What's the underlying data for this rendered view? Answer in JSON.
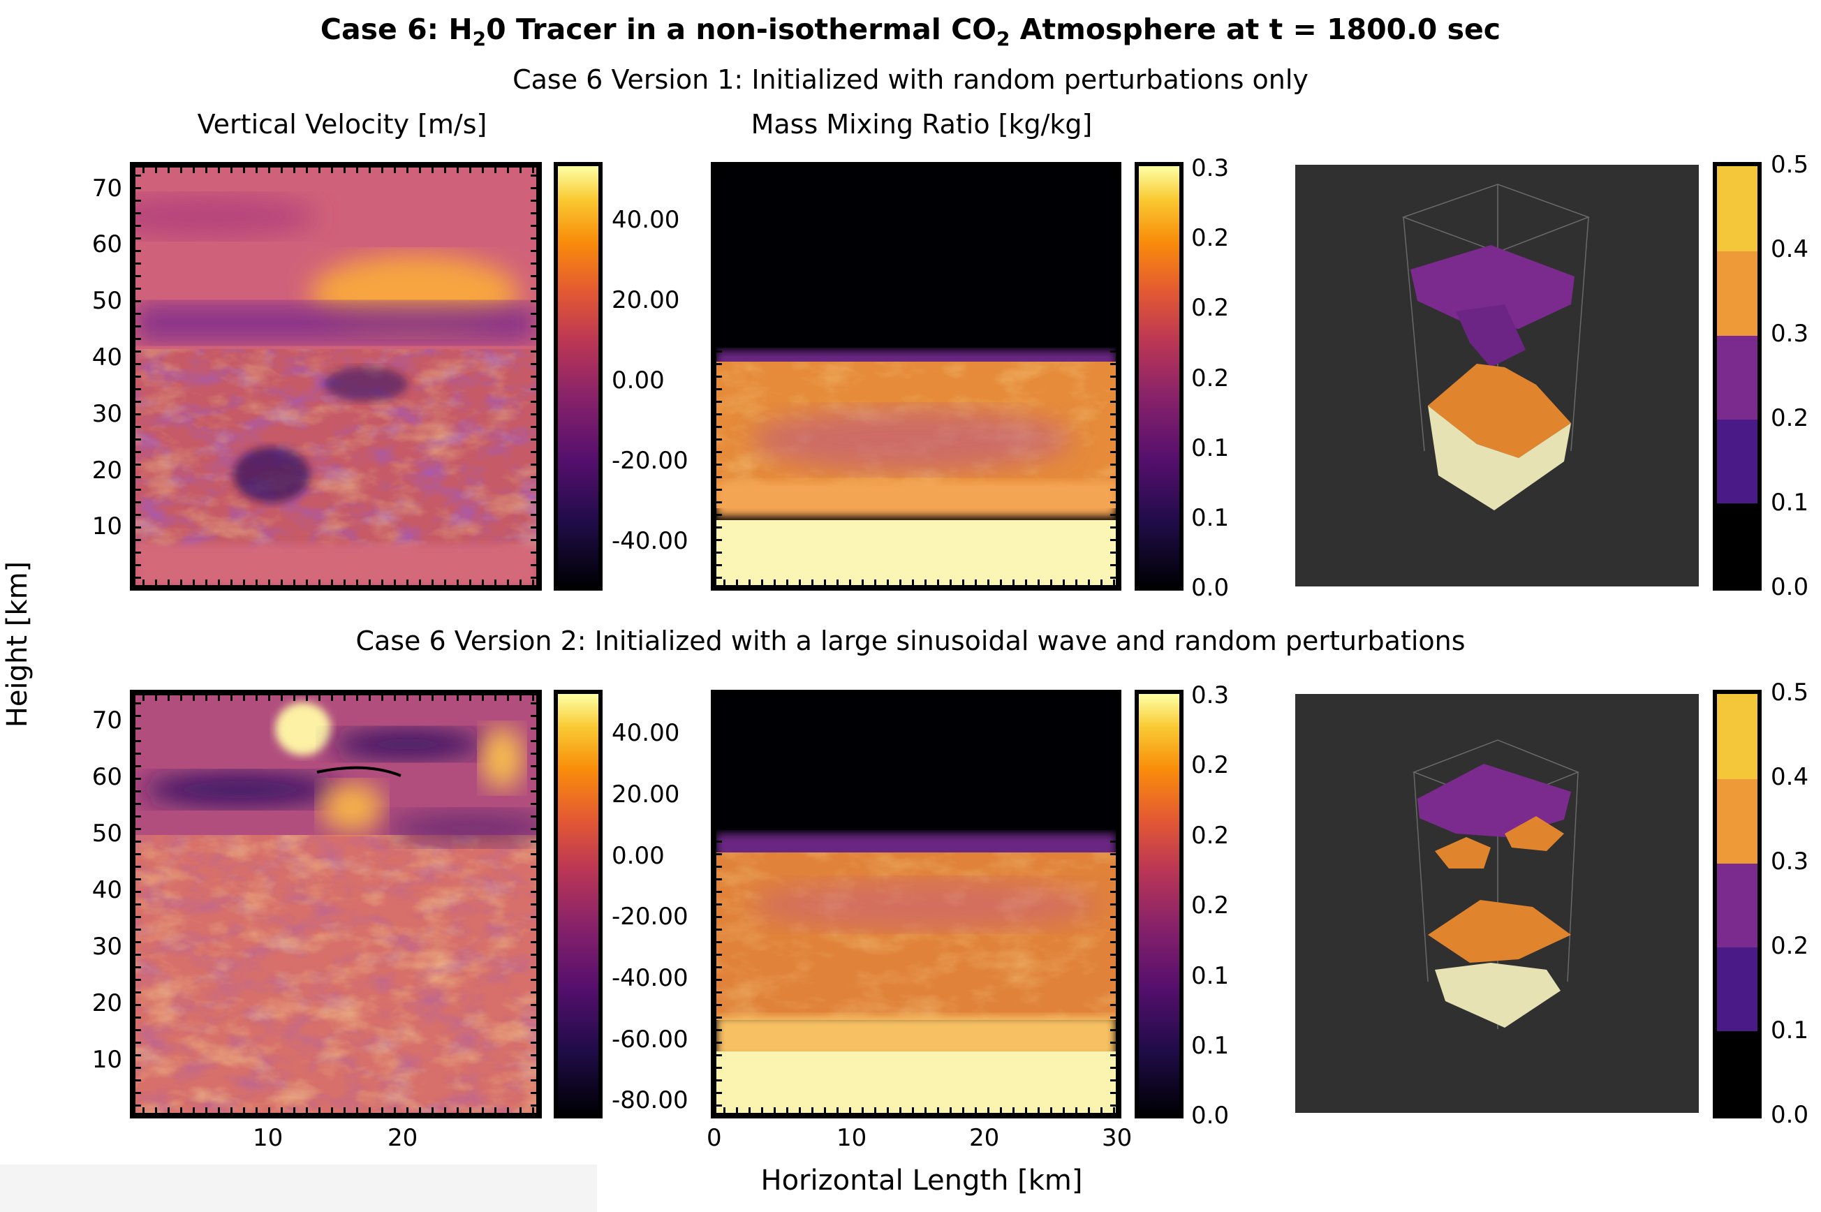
{
  "title": {
    "pre": "Case 6: H",
    "sub1": "2",
    "mid": "0 Tracer in a non-isothermal CO",
    "sub2": "2",
    "post": " Atmosphere at t = 1800.0 sec"
  },
  "version1_title": "Case 6 Version 1: Initialized with random perturbations only",
  "version2_title": "Case 6 Version 2: Initialized with a large sinusoidal wave and random perturbations",
  "col1_title": "Vertical Velocity [m/s]",
  "col2_title": "Mass Mixing Ratio [kg/kg]",
  "ylabel": "Height [km]",
  "xlabel": "Horizontal Length [km]",
  "colors": {
    "dark_bg": "#2f302f",
    "purple": "#7b2a8e",
    "orange": "#e0852e",
    "cream": "#f1efc6"
  },
  "chart_data": [
    {
      "type": "heatmap",
      "name": "v1-vertical-velocity",
      "colormap": "inferno",
      "ylim": [
        0,
        76
      ],
      "yticks": [
        "10",
        "20",
        "30",
        "40",
        "50",
        "60",
        "70"
      ],
      "colorbar_ticks": [
        "40.00",
        "20.00",
        "0.00",
        "-20.00",
        "-40.00"
      ],
      "features": [
        "turbulent layer below ~42 km",
        "smooth banded flow above"
      ]
    },
    {
      "type": "heatmap",
      "name": "v1-mass-mixing-ratio",
      "colormap": "inferno",
      "colorbar_ticks": [
        "0.3",
        "0.2",
        "0.2",
        "0.2",
        "0.1",
        "0.1",
        "0.0"
      ],
      "features": [
        "near zero above ~42 km",
        "~0.3 below ~13 km"
      ]
    },
    {
      "type": "other",
      "name": "v1-3d-isosurface",
      "colorbar_ticks": [
        "0.5",
        "0.4",
        "0.3",
        "0.2",
        "0.1",
        "0.0"
      ],
      "levels": [
        "#000000",
        "#4a1a86",
        "#7b2a8e",
        "#e0852e",
        "#f4c73a"
      ]
    },
    {
      "type": "heatmap",
      "name": "v2-vertical-velocity",
      "colormap": "inferno",
      "ylim": [
        0,
        76
      ],
      "yticks": [
        "10",
        "20",
        "30",
        "40",
        "50",
        "60",
        "70"
      ],
      "xticks": [
        "10",
        "20"
      ],
      "colorbar_ticks": [
        "40.00",
        "20.00",
        "0.00",
        "-20.00",
        "-40.00",
        "-60.00",
        "-80.00"
      ],
      "features": [
        "strong wave structure 55-75 km"
      ]
    },
    {
      "type": "heatmap",
      "name": "v2-mass-mixing-ratio",
      "colormap": "inferno",
      "xlim": [
        0,
        30
      ],
      "xticks": [
        "0",
        "10",
        "20",
        "30"
      ],
      "colorbar_ticks": [
        "0.3",
        "0.2",
        "0.2",
        "0.2",
        "0.1",
        "0.1",
        "0.0"
      ],
      "features": [
        "near zero above ~51 km",
        "~0.3 below ~8 km"
      ]
    },
    {
      "type": "other",
      "name": "v2-3d-isosurface",
      "colorbar_ticks": [
        "0.5",
        "0.4",
        "0.3",
        "0.2",
        "0.1",
        "0.0"
      ],
      "levels": [
        "#000000",
        "#4a1a86",
        "#7b2a8e",
        "#e0852e",
        "#f4c73a"
      ]
    }
  ]
}
